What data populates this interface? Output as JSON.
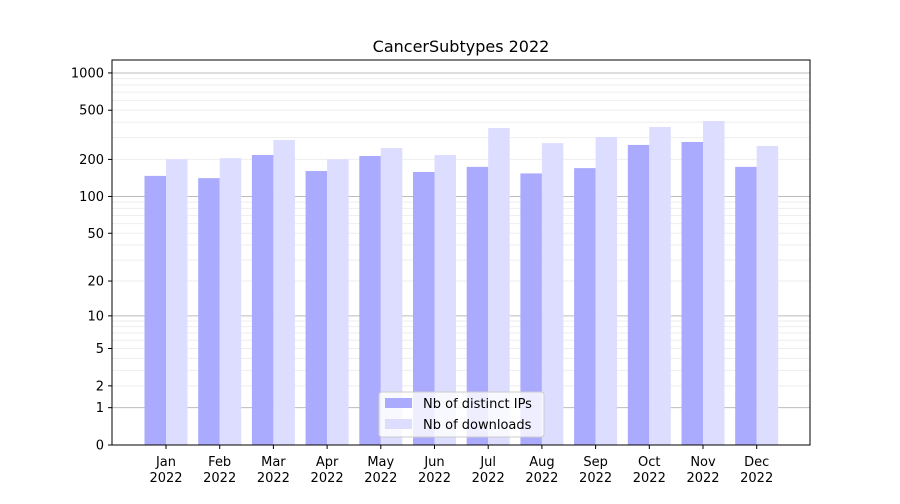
{
  "chart_data": {
    "type": "bar",
    "title": "CancerSubtypes 2022",
    "xlabel": "",
    "ylabel": "",
    "yscale": "symlog (log10(1+y))",
    "ylim": [
      0,
      1200
    ],
    "yticks": [
      0,
      1,
      2,
      5,
      10,
      20,
      50,
      100,
      200,
      500,
      1000
    ],
    "grid": true,
    "legend_position": "bottom-center",
    "categories": [
      [
        "Jan",
        "2022"
      ],
      [
        "Feb",
        "2022"
      ],
      [
        "Mar",
        "2022"
      ],
      [
        "Apr",
        "2022"
      ],
      [
        "May",
        "2022"
      ],
      [
        "Jun",
        "2022"
      ],
      [
        "Jul",
        "2022"
      ],
      [
        "Aug",
        "2022"
      ],
      [
        "Sep",
        "2022"
      ],
      [
        "Oct",
        "2022"
      ],
      [
        "Nov",
        "2022"
      ],
      [
        "Dec",
        "2022"
      ]
    ],
    "series": [
      {
        "name": "Nb of distinct IPs",
        "color": "#aaaaff",
        "values": [
          147,
          141,
          217,
          161,
          213,
          158,
          174,
          154,
          170,
          262,
          277,
          174
        ]
      },
      {
        "name": "Nb of downloads",
        "color": "#ddddff",
        "values": [
          201,
          205,
          287,
          201,
          247,
          217,
          359,
          271,
          304,
          366,
          409,
          257
        ]
      }
    ]
  }
}
